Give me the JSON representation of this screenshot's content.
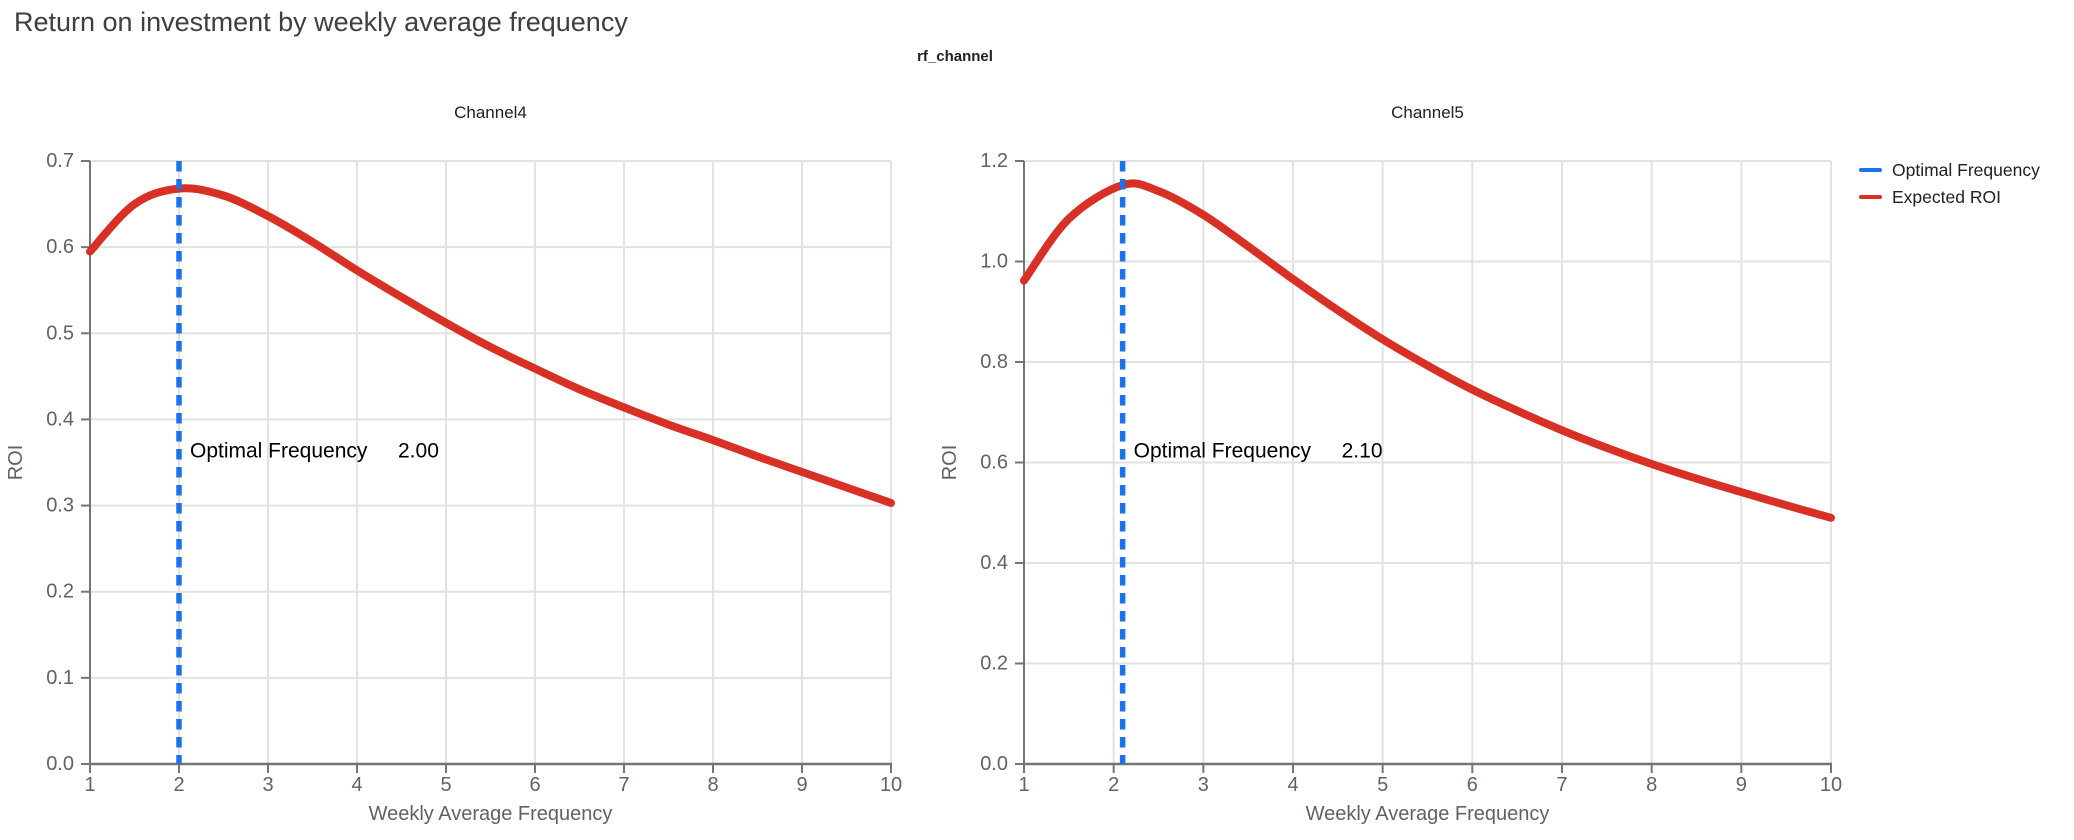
{
  "page_title": "Return on investment by weekly average frequency",
  "facet_title": "rf_channel",
  "legend": {
    "items": [
      {
        "label": "Optimal Frequency",
        "color": "#1a73e8"
      },
      {
        "label": "Expected ROI",
        "color": "#d93025"
      }
    ]
  },
  "colors": {
    "expected_roi_line": "#d93025",
    "optimal_frequency_line": "#1a73e8",
    "gridline": "#e2e2e2",
    "axis_line": "#757575",
    "axis_text": "#5f6368",
    "page_title_text": "#3c4043",
    "chart_title_text": "#202124",
    "annotation_text": "#000000"
  },
  "chart_data": [
    {
      "type": "line",
      "title": "Channel4",
      "xlabel": "Weekly Average Frequency",
      "ylabel": "ROI",
      "xlim": [
        1,
        10
      ],
      "ylim": [
        0,
        0.7
      ],
      "xticks": [
        1,
        2,
        3,
        4,
        5,
        6,
        7,
        8,
        9,
        10
      ],
      "yticks": [
        {
          "v": 0.0,
          "label": "0.0"
        },
        {
          "v": 0.1,
          "label": "0.1"
        },
        {
          "v": 0.2,
          "label": "0.2"
        },
        {
          "v": 0.3,
          "label": "0.3"
        },
        {
          "v": 0.4,
          "label": "0.4"
        },
        {
          "v": 0.5,
          "label": "0.5"
        },
        {
          "v": 0.6,
          "label": "0.6"
        },
        {
          "v": 0.7,
          "label": "0.7"
        }
      ],
      "grid": true,
      "optimal_frequency": 2.0,
      "annotation_label": "Optimal Frequency",
      "annotation_value": "2.00",
      "series": [
        {
          "name": "Expected ROI",
          "x": [
            1,
            1.5,
            2,
            2.5,
            3,
            3.5,
            4,
            4.5,
            5,
            5.5,
            6,
            6.5,
            7,
            7.5,
            8,
            8.5,
            9,
            9.5,
            10
          ],
          "y": [
            0.595,
            0.65,
            0.668,
            0.66,
            0.636,
            0.606,
            0.573,
            0.542,
            0.512,
            0.484,
            0.459,
            0.435,
            0.414,
            0.394,
            0.376,
            0.357,
            0.339,
            0.321,
            0.303
          ]
        }
      ]
    },
    {
      "type": "line",
      "title": "Channel5",
      "xlabel": "Weekly Average Frequency",
      "ylabel": "ROI",
      "xlim": [
        1,
        10
      ],
      "ylim": [
        0,
        1.2
      ],
      "xticks": [
        1,
        2,
        3,
        4,
        5,
        6,
        7,
        8,
        9,
        10
      ],
      "yticks": [
        {
          "v": 0.0,
          "label": "0.0"
        },
        {
          "v": 0.2,
          "label": "0.2"
        },
        {
          "v": 0.4,
          "label": "0.4"
        },
        {
          "v": 0.6,
          "label": "0.6"
        },
        {
          "v": 0.8,
          "label": "0.8"
        },
        {
          "v": 1.0,
          "label": "1.0"
        },
        {
          "v": 1.2,
          "label": "1.2"
        }
      ],
      "grid": true,
      "optimal_frequency": 2.1,
      "annotation_label": "Optimal Frequency",
      "annotation_value": "2.10",
      "series": [
        {
          "name": "Expected ROI",
          "x": [
            1,
            1.5,
            2.1,
            2.5,
            3,
            3.5,
            4,
            4.5,
            5,
            5.5,
            6,
            6.5,
            7,
            7.5,
            8,
            8.5,
            9,
            9.5,
            10
          ],
          "y": [
            0.962,
            1.085,
            1.152,
            1.14,
            1.093,
            1.03,
            0.965,
            0.903,
            0.845,
            0.793,
            0.745,
            0.703,
            0.664,
            0.629,
            0.597,
            0.568,
            0.541,
            0.515,
            0.49
          ]
        }
      ]
    }
  ]
}
